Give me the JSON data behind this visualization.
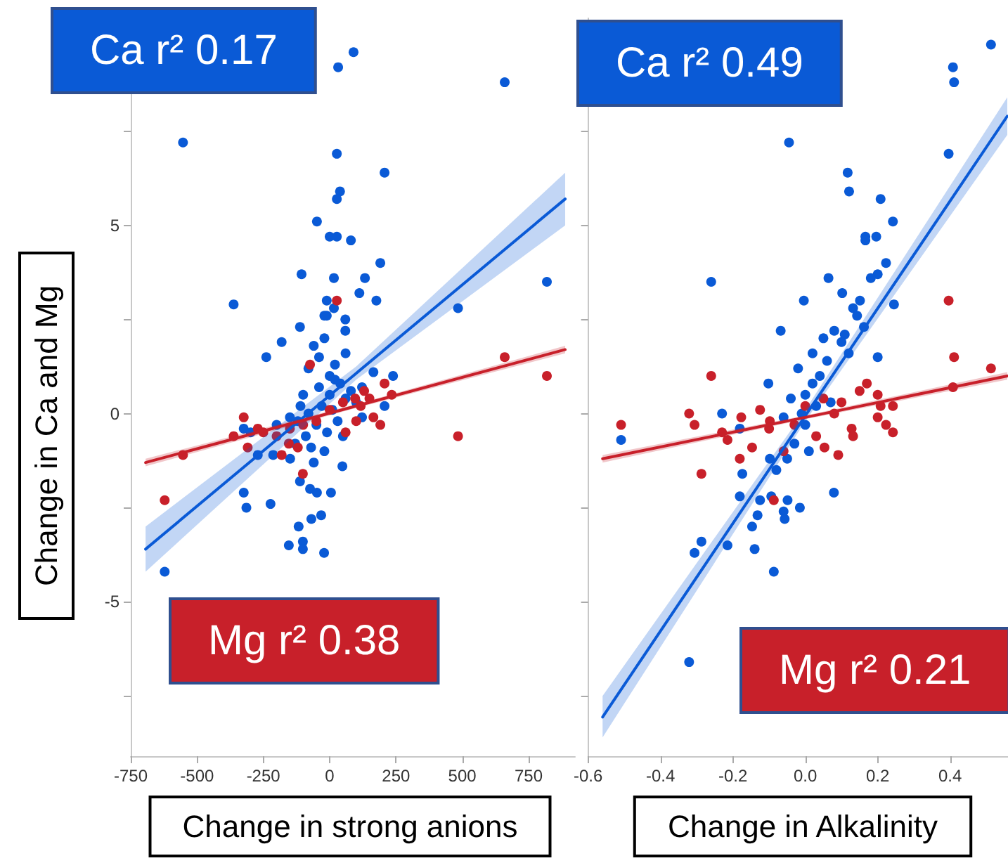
{
  "chart_data": [
    {
      "type": "scatter",
      "xlabel": "Change in strong anions",
      "ylabel": "Change in Ca and Mg",
      "annotations": [
        "Ca r² 0.17",
        "Mg r² 0.38"
      ],
      "marker": "circle",
      "tick_labels": "xy",
      "xlim": [
        -750,
        925
      ],
      "ylim": [
        -9.1,
        10.5
      ],
      "xticks": [
        -750,
        -500,
        -250,
        0,
        250,
        500,
        750
      ],
      "yticks": [
        {
          "value": -7.5,
          "label": null
        },
        -5,
        {
          "value": -2.5,
          "label": null
        },
        0,
        {
          "value": 2.5,
          "label": null
        },
        5,
        {
          "value": 7.5,
          "label": null
        }
      ],
      "series": [
        {
          "color": "#0a5ad6",
          "x": [
            90,
            32,
            660,
            -553,
            27,
            207,
            39,
            27,
            -48,
            0,
            27,
            80,
            191,
            -106,
            16,
            133,
            819,
            112,
            -362,
            176,
            484,
            -11,
            16,
            59,
            -11,
            -112,
            59,
            -181,
            -239,
            165,
            239,
            122,
            122,
            207,
            -324,
            -298,
            -271,
            -213,
            -149,
            48,
            -112,
            -74,
            -48,
            5,
            -324,
            -314,
            -223,
            -32,
            -69,
            -117,
            -154,
            -101,
            -101,
            -21,
            -622,
            -100,
            -80,
            -60,
            -40,
            -20,
            0,
            20,
            40,
            60,
            -120,
            -90,
            -70,
            -50,
            -30,
            -10,
            10,
            30,
            50,
            -150,
            -200,
            -130,
            -60,
            -20,
            80,
            100,
            0,
            -40,
            20,
            -80,
            -110,
            60,
            -20
          ],
          "values": [
            9.6,
            9.2,
            8.8,
            7.2,
            6.9,
            6.4,
            5.9,
            5.7,
            5.1,
            4.7,
            4.7,
            4.6,
            4.0,
            3.7,
            3.6,
            3.6,
            3.5,
            3.2,
            2.9,
            3.0,
            2.8,
            3.0,
            2.8,
            2.5,
            2.6,
            2.3,
            2.2,
            1.9,
            1.5,
            1.1,
            1.0,
            0.7,
            -0.1,
            0.2,
            -0.4,
            -0.5,
            -1.1,
            -1.1,
            -1.2,
            -1.4,
            -1.8,
            -2.0,
            -2.1,
            -2.1,
            -2.1,
            -2.5,
            -2.4,
            -2.7,
            -2.8,
            -3.0,
            -3.5,
            -3.4,
            -3.6,
            -3.7,
            -4.2,
            0.5,
            1.2,
            1.8,
            1.5,
            2.0,
            1.0,
            1.3,
            0.8,
            0.4,
            -0.2,
            -0.6,
            -0.9,
            -0.3,
            0.2,
            -0.5,
            0.1,
            -0.2,
            -0.6,
            -0.1,
            -0.3,
            -0.8,
            -1.3,
            -1.0,
            0.6,
            0.3,
            0.5,
            0.7,
            0.9,
            0.0,
            0.2,
            1.6,
            2.6
          ]
        },
        {
          "color": "#c8202a",
          "x": [
            -622,
            -553,
            -324,
            -362,
            -309,
            -271,
            -181,
            -154,
            -101,
            -74,
            27,
            96,
            117,
            165,
            191,
            207,
            234,
            484,
            660,
            819,
            -250,
            -200,
            -150,
            -100,
            -50,
            0,
            50,
            100,
            150,
            -120,
            60,
            130
          ],
          "values": [
            -2.3,
            -1.1,
            -0.1,
            -0.6,
            -0.9,
            -0.4,
            -1.1,
            -0.8,
            -1.6,
            1.3,
            3.0,
            0.4,
            0.2,
            -0.1,
            -0.3,
            0.8,
            0.5,
            -0.6,
            1.5,
            1.0,
            -0.5,
            -0.6,
            -0.4,
            -0.3,
            -0.2,
            0.1,
            0.3,
            -0.2,
            0.4,
            -0.9,
            -0.5,
            0.6
          ]
        },
        {
          "type": "line",
          "marker": "none",
          "line_style": "solid",
          "color": "#0a5ad6",
          "x": [
            -694,
            100,
            888
          ],
          "values": [
            -3.6,
            1.07,
            5.7
          ],
          "lower": [
            -4.2,
            0.9,
            5.0
          ],
          "upper": [
            -3.0,
            1.25,
            6.4
          ]
        },
        {
          "type": "line",
          "marker": "none",
          "line_style": "solid",
          "color": "#c8202a",
          "x": [
            -694,
            100,
            888
          ],
          "values": [
            -1.3,
            0.2,
            1.7
          ],
          "lower": [
            -1.4,
            0.15,
            1.6
          ],
          "upper": [
            -1.2,
            0.25,
            1.8
          ]
        }
      ]
    },
    {
      "type": "scatter",
      "xlabel": "Change in Alkalinity",
      "annotations": [
        "Ca r² 0.49",
        "Mg r² 0.21"
      ],
      "marker": "circle",
      "tick_labels": "x",
      "xlim": [
        -0.6,
        0.56
      ],
      "ylim": [
        -9.1,
        10.5
      ],
      "xticks": [
        -0.6,
        -0.4,
        -0.2,
        {
          "value": 0,
          "label": "0.0"
        },
        0.2,
        0.4
      ],
      "yticks": [
        {
          "value": -7.5,
          "label": null
        },
        {
          "value": -5,
          "label": null
        },
        {
          "value": -2.5,
          "label": null
        },
        {
          "value": 0,
          "label": null
        },
        {
          "value": 2.5,
          "label": null
        },
        {
          "value": 5,
          "label": null
        },
        {
          "value": 7.5,
          "label": null
        }
      ],
      "series": [
        {
          "color": "#0a5ad6",
          "x": [
            0.513,
            0.408,
            0.411,
            -0.045,
            0.396,
            0.117,
            0.121,
            0.208,
            0.242,
            0.166,
            0.196,
            0.166,
            0.223,
            -0.26,
            0.064,
            0.2,
            0.181,
            0.102,
            -0.004,
            0.151,
            0.245,
            0.132,
            0.143,
            -0.068,
            0.162,
            0.109,
            0.2,
            -0.102,
            -0.23,
            -0.509,
            -0.181,
            -0.098,
            -0.174,
            -0.181,
            -0.125,
            -0.094,
            -0.049,
            0.079,
            -0.06,
            -0.015,
            -0.132,
            -0.057,
            -0.147,
            -0.14,
            -0.287,
            -0.306,
            -0.215,
            -0.087,
            -0.321,
            0.0,
            -0.02,
            0.02,
            0.05,
            0.04,
            0.0,
            -0.03,
            -0.05,
            0.03,
            0.06,
            0.08,
            -0.06,
            0.01,
            -0.08,
            0.02,
            -0.01,
            0.07,
            -0.04,
            0.1,
            0.12
          ],
          "values": [
            9.8,
            9.2,
            8.8,
            7.2,
            6.9,
            6.4,
            5.9,
            5.7,
            5.1,
            4.7,
            4.7,
            4.6,
            4.0,
            3.5,
            3.6,
            3.7,
            3.6,
            3.2,
            3.0,
            3.0,
            2.9,
            2.8,
            2.6,
            2.2,
            2.3,
            2.1,
            1.5,
            0.8,
            0.0,
            -0.7,
            -0.4,
            -1.2,
            -1.6,
            -2.2,
            -2.3,
            -2.2,
            -2.3,
            -2.1,
            -2.6,
            -2.5,
            -2.7,
            -2.8,
            -3.0,
            -3.6,
            -3.4,
            -3.7,
            -3.5,
            -4.2,
            -6.6,
            0.5,
            1.2,
            1.6,
            2.0,
            1.0,
            -0.3,
            -0.8,
            -1.2,
            0.2,
            1.4,
            2.2,
            -0.1,
            -1.0,
            -1.5,
            0.8,
            0.0,
            0.3,
            0.4,
            1.9,
            1.6
          ]
        },
        {
          "color": "#c8202a",
          "x": [
            -0.509,
            -0.26,
            -0.321,
            -0.306,
            -0.287,
            -0.23,
            -0.215,
            -0.181,
            -0.177,
            -0.147,
            -0.125,
            -0.098,
            -0.087,
            -0.06,
            0.091,
            0.053,
            0.128,
            0.132,
            0.17,
            0.2,
            0.208,
            0.2,
            0.223,
            0.242,
            0.242,
            0.396,
            0.411,
            0.408,
            0.513,
            0.0,
            0.05,
            -0.03,
            0.1,
            0.15,
            -0.1,
            0.03,
            0.08
          ],
          "values": [
            -0.3,
            1.0,
            0.0,
            -0.3,
            -1.6,
            -0.5,
            -0.7,
            -1.2,
            -0.1,
            -0.9,
            0.1,
            -0.2,
            -2.3,
            -1.0,
            -1.1,
            -0.9,
            -0.4,
            -0.6,
            0.8,
            0.5,
            0.2,
            -0.1,
            -0.3,
            -0.5,
            0.2,
            3.0,
            1.5,
            0.7,
            1.2,
            0.2,
            0.4,
            -0.3,
            0.3,
            0.6,
            -0.4,
            -0.6,
            0.0
          ]
        },
        {
          "type": "line",
          "marker": "none",
          "line_style": "solid",
          "color": "#0a5ad6",
          "x": [
            -0.56,
            0.0,
            0.558
          ],
          "values": [
            -8.06,
            -0.06,
            7.9
          ],
          "lower": [
            -8.6,
            -0.2,
            7.4
          ],
          "upper": [
            -7.5,
            0.1,
            8.4
          ]
        },
        {
          "type": "line",
          "marker": "none",
          "line_style": "solid",
          "color": "#c8202a",
          "x": [
            -0.56,
            0.0,
            0.558
          ],
          "values": [
            -1.2,
            -0.1,
            1.0
          ],
          "lower": [
            -1.3,
            -0.15,
            0.9
          ],
          "upper": [
            -1.1,
            -0.05,
            1.1
          ]
        }
      ]
    }
  ]
}
